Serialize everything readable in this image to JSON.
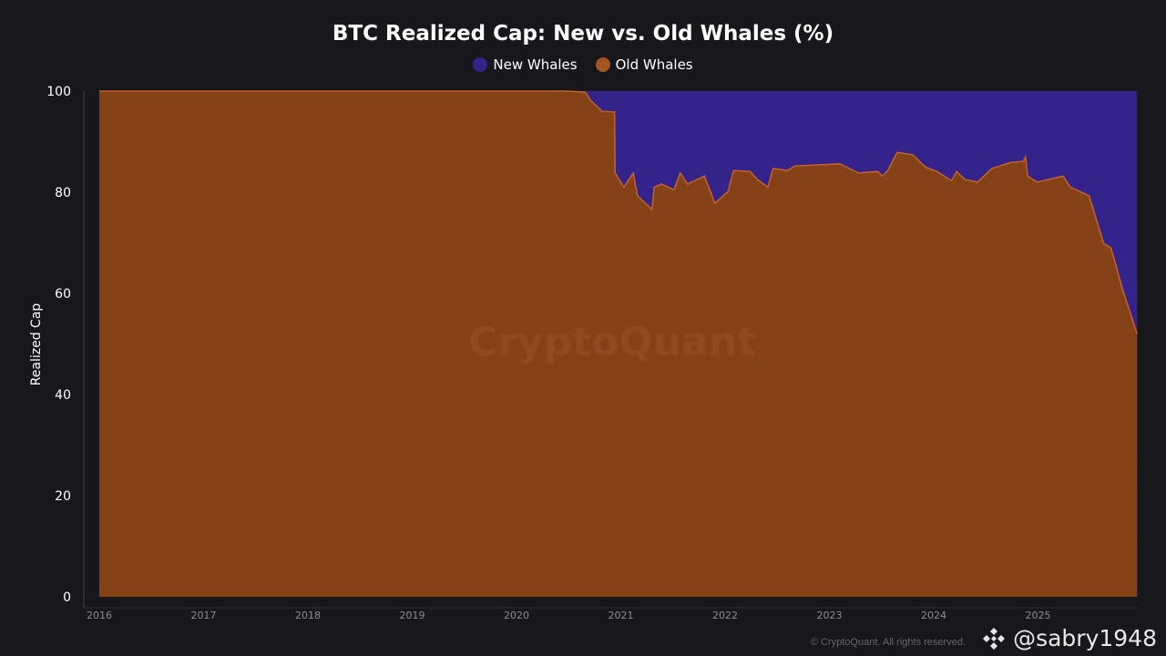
{
  "chart_data": {
    "type": "area",
    "stacked": true,
    "title": "BTC Realized Cap: New vs. Old Whales (%)",
    "xlabel": "",
    "ylabel": "Realized Cap",
    "ylim": [
      0,
      100
    ],
    "xlim": [
      2015.85,
      2025.96
    ],
    "yticks": [
      0,
      20,
      40,
      60,
      80,
      100
    ],
    "xticks": [
      "2016",
      "2017",
      "2018",
      "2019",
      "2020",
      "2021",
      "2022",
      "2023",
      "2024",
      "2025"
    ],
    "legend_position": "top-center",
    "colors": {
      "new": "#33238a",
      "old": "#844216",
      "line": "#c4642a"
    },
    "x": [
      2016.0,
      2020.46,
      2020.66,
      2020.71,
      2020.82,
      2020.94,
      2020.945,
      2021.03,
      2021.12,
      2021.16,
      2021.3,
      2021.32,
      2021.39,
      2021.51,
      2021.57,
      2021.64,
      2021.8,
      2021.87,
      2021.9,
      2022.03,
      2022.08,
      2022.24,
      2022.31,
      2022.41,
      2022.46,
      2022.6,
      2022.67,
      2023.1,
      2023.28,
      2023.46,
      2023.51,
      2023.56,
      2023.65,
      2023.8,
      2023.92,
      2024.03,
      2024.17,
      2024.22,
      2024.3,
      2024.42,
      2024.56,
      2024.74,
      2024.86,
      2024.88,
      2024.9,
      2024.99,
      2025.24,
      2025.31,
      2025.49,
      2025.63,
      2025.7,
      2025.81,
      2025.95
    ],
    "series": [
      {
        "name": "Old Whales",
        "values": [
          100,
          100,
          99.8,
          98.2,
          96,
          95.9,
          83.8,
          81,
          83.8,
          79.3,
          76.6,
          81,
          81.6,
          80.5,
          83.8,
          81.6,
          83.2,
          79.6,
          77.8,
          80.2,
          84.3,
          84.1,
          82.5,
          81,
          84.7,
          84.3,
          85.2,
          85.6,
          83.8,
          84.1,
          83.2,
          84.3,
          87.9,
          87.4,
          85,
          84.1,
          82.3,
          84.1,
          82.5,
          82,
          84.7,
          85.9,
          86.1,
          87,
          83.2,
          82,
          83.2,
          81,
          79.3,
          69.9,
          69,
          60.9,
          52
        ]
      },
      {
        "name": "New Whales",
        "values": "100 minus Old Whales (stacked to 100%)"
      }
    ],
    "watermark": "CryptoQuant"
  },
  "legend": {
    "new": "New Whales",
    "old": "Old Whales"
  },
  "credit": "@sabry1948",
  "copyright": "© CryptoQuant. All rights reserved."
}
